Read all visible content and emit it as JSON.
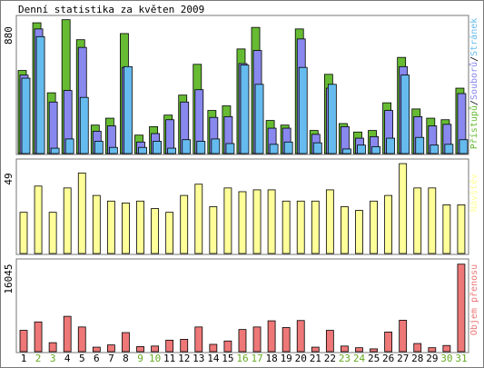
{
  "title": "Denní statistika za květen 2009",
  "colors": {
    "pristupu": "#66bb33",
    "souboru": "#8888ee",
    "stranek": "#66bbee",
    "navstev": "#ffff99",
    "objem": "#ee7777",
    "weekend_label": "#66aa22",
    "weekday_label": "#000000"
  },
  "legend": {
    "top": [
      {
        "text": "Přístupů",
        "color": "#66bb33"
      },
      {
        "text": "/",
        "color": "#000000"
      },
      {
        "text": "Souborů",
        "color": "#8888ee"
      },
      {
        "text": "/",
        "color": "#000000"
      },
      {
        "text": "Stránek",
        "color": "#66bbee"
      }
    ],
    "middle": "Návštěv",
    "bottom": "Objem přenosu"
  },
  "chart_data": [
    {
      "type": "bar",
      "panel": "top",
      "ymax_label": "880",
      "ylim": [
        0,
        880
      ],
      "categories": [
        "1",
        "2",
        "3",
        "4",
        "5",
        "6",
        "7",
        "8",
        "9",
        "10",
        "11",
        "12",
        "13",
        "14",
        "15",
        "16",
        "17",
        "18",
        "19",
        "20",
        "21",
        "22",
        "23",
        "24",
        "25",
        "26",
        "27",
        "28",
        "29",
        "30",
        "31"
      ],
      "series": [
        {
          "name": "Přístupů",
          "values": [
            540,
            850,
            395,
            870,
            740,
            185,
            230,
            780,
            120,
            175,
            250,
            380,
            580,
            280,
            310,
            680,
            820,
            215,
            185,
            810,
            150,
            515,
            195,
            140,
            150,
            330,
            625,
            290,
            230,
            220,
            425
          ]
        },
        {
          "name": "Souborů",
          "values": [
            510,
            810,
            335,
            410,
            690,
            145,
            180,
            560,
            75,
            130,
            220,
            335,
            415,
            235,
            240,
            585,
            670,
            165,
            165,
            745,
            125,
            425,
            175,
            100,
            110,
            280,
            565,
            240,
            180,
            190,
            390
          ]
        },
        {
          "name": "Stránek",
          "values": [
            490,
            760,
            35,
            95,
            365,
            80,
            40,
            565,
            40,
            80,
            35,
            90,
            80,
            95,
            65,
            575,
            450,
            60,
            75,
            560,
            70,
            450,
            30,
            55,
            45,
            100,
            510,
            105,
            55,
            60,
            90
          ]
        }
      ]
    },
    {
      "type": "bar",
      "panel": "middle",
      "ymax_label": "49",
      "ylim": [
        0,
        49
      ],
      "categories": [
        "1",
        "2",
        "3",
        "4",
        "5",
        "6",
        "7",
        "8",
        "9",
        "10",
        "11",
        "12",
        "13",
        "14",
        "15",
        "16",
        "17",
        "18",
        "19",
        "20",
        "21",
        "22",
        "23",
        "24",
        "25",
        "26",
        "27",
        "28",
        "29",
        "30",
        "31"
      ],
      "series": [
        {
          "name": "Návštěv",
          "values": [
            22,
            36,
            22,
            35,
            43,
            31,
            28,
            27,
            28,
            24,
            22,
            31,
            37,
            25,
            35,
            33,
            34,
            34,
            28,
            28,
            28,
            34,
            25,
            23,
            28,
            31,
            48,
            35,
            35,
            26,
            26
          ]
        }
      ]
    },
    {
      "type": "bar",
      "panel": "bottom",
      "ymax_label": "16045",
      "ylim": [
        0,
        16045
      ],
      "categories": [
        "1",
        "2",
        "3",
        "4",
        "5",
        "6",
        "7",
        "8",
        "9",
        "10",
        "11",
        "12",
        "13",
        "14",
        "15",
        "16",
        "17",
        "18",
        "19",
        "20",
        "21",
        "22",
        "23",
        "24",
        "25",
        "26",
        "27",
        "28",
        "29",
        "30",
        "31"
      ],
      "series": [
        {
          "name": "Objem přenosu",
          "values": [
            3800,
            5300,
            1600,
            6300,
            4400,
            800,
            1200,
            3400,
            900,
            1000,
            2050,
            2200,
            4400,
            1300,
            1900,
            3950,
            4400,
            5500,
            4300,
            5550,
            800,
            3800,
            1000,
            700,
            500,
            3500,
            5600,
            1450,
            700,
            1100,
            15600
          ]
        }
      ]
    }
  ],
  "x_labels": [
    {
      "text": "1",
      "weekend": false
    },
    {
      "text": "2",
      "weekend": true
    },
    {
      "text": "3",
      "weekend": true
    },
    {
      "text": "4",
      "weekend": false
    },
    {
      "text": "5",
      "weekend": false
    },
    {
      "text": "6",
      "weekend": false
    },
    {
      "text": "7",
      "weekend": false
    },
    {
      "text": "8",
      "weekend": false
    },
    {
      "text": "9",
      "weekend": true
    },
    {
      "text": "10",
      "weekend": true
    },
    {
      "text": "11",
      "weekend": false
    },
    {
      "text": "12",
      "weekend": false
    },
    {
      "text": "13",
      "weekend": false
    },
    {
      "text": "14",
      "weekend": false
    },
    {
      "text": "15",
      "weekend": false
    },
    {
      "text": "16",
      "weekend": true
    },
    {
      "text": "17",
      "weekend": true
    },
    {
      "text": "18",
      "weekend": false
    },
    {
      "text": "19",
      "weekend": false
    },
    {
      "text": "20",
      "weekend": false
    },
    {
      "text": "21",
      "weekend": false
    },
    {
      "text": "22",
      "weekend": false
    },
    {
      "text": "23",
      "weekend": true
    },
    {
      "text": "24",
      "weekend": true
    },
    {
      "text": "25",
      "weekend": false
    },
    {
      "text": "26",
      "weekend": false
    },
    {
      "text": "27",
      "weekend": false
    },
    {
      "text": "28",
      "weekend": false
    },
    {
      "text": "29",
      "weekend": false
    },
    {
      "text": "30",
      "weekend": true
    },
    {
      "text": "31",
      "weekend": true
    }
  ]
}
